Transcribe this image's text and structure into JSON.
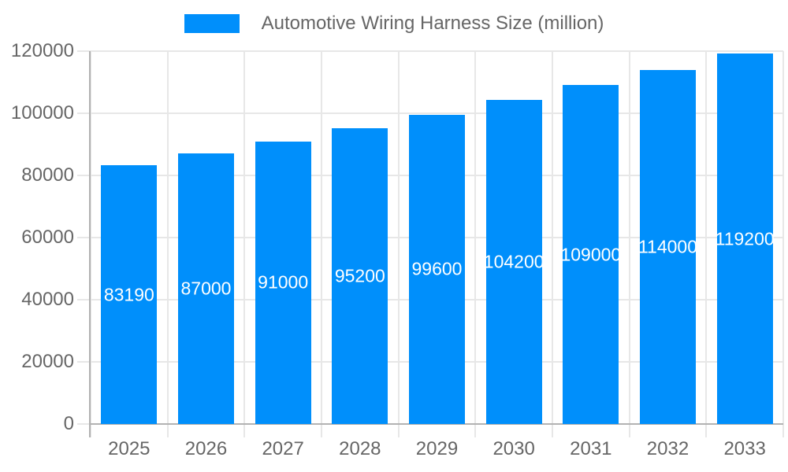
{
  "legend": {
    "label": "Automotive Wiring Harness Size (million)"
  },
  "colors": {
    "bar": "#008FFB",
    "grid": "#e7e7e7",
    "axis": "#b2b2b2",
    "tick_label": "#666666",
    "data_label": "#ffffff",
    "legend_text": "#666666",
    "background": "#ffffff"
  },
  "chart_data": {
    "type": "bar",
    "title": "Automotive Wiring Harness Size (million)",
    "categories": [
      "2025",
      "2026",
      "2027",
      "2028",
      "2029",
      "2030",
      "2031",
      "2032",
      "2033"
    ],
    "values": [
      83190,
      87000,
      91000,
      95200,
      99600,
      104200,
      109000,
      114000,
      119200
    ],
    "data_labels": [
      "83190",
      "87000",
      "91000",
      "95200",
      "99600",
      "104200",
      "109000",
      "114000",
      "119200"
    ],
    "xlabel": "",
    "ylabel": "",
    "ylim": [
      0,
      120000
    ],
    "ytick_interval": 20000,
    "ytick_labels": [
      "0",
      "20000",
      "40000",
      "60000",
      "80000",
      "100000",
      "120000"
    ],
    "grid": true,
    "legend_position": "top",
    "data_label_position": "inside-center"
  }
}
